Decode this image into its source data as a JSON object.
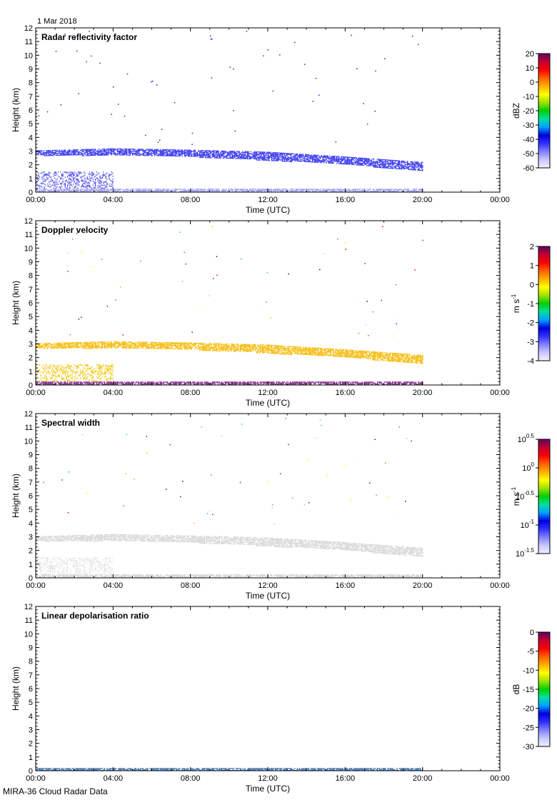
{
  "header": {
    "date": "1 Mar 2018"
  },
  "footer": {
    "caption": "MIRA-36 Cloud Radar Data"
  },
  "chart_data": [
    {
      "type": "heatmap",
      "title": "Radar reflectivity factor",
      "xlabel": "Time (UTC)",
      "ylabel": "Height (km)",
      "x_ticks": [
        "00:00",
        "04:00",
        "08:00",
        "12:00",
        "16:00",
        "20:00",
        "00:00"
      ],
      "y_ticks": [
        "0",
        "1",
        "2",
        "3",
        "4",
        "5",
        "6",
        "7",
        "8",
        "9",
        "10",
        "11",
        "12"
      ],
      "xlim_hours": [
        0,
        24
      ],
      "ylim_km": [
        0,
        12
      ],
      "data_end_hour": 20,
      "colorbar": {
        "label": "dBZ",
        "ticks": [
          "20",
          "10",
          "0",
          "-10",
          "-20",
          "-30",
          "-40",
          "-50",
          "-60"
        ],
        "min": -60,
        "max": 20
      },
      "layers": [
        {
          "name": "main cloud layer",
          "color": "#2d2df0",
          "base_km": [
            2.7,
            2.7,
            2.6,
            2.35,
            2.05,
            1.55
          ],
          "top_km": [
            3.05,
            3.2,
            3.1,
            2.95,
            2.6,
            2.2
          ]
        },
        {
          "name": "low layer",
          "color": "#4a4ae8",
          "hours": [
            0,
            4
          ],
          "base_km": 0.3,
          "top_km": 1.5
        },
        {
          "name": "surface clutter",
          "color": "#9a9af0",
          "base_km": 0.05,
          "top_km": 0.25
        }
      ]
    },
    {
      "type": "heatmap",
      "title": "Doppler velocity",
      "xlabel": "Time (UTC)",
      "ylabel": "Height (km)",
      "x_ticks": [
        "00:00",
        "04:00",
        "08:00",
        "12:00",
        "16:00",
        "20:00",
        "00:00"
      ],
      "y_ticks": [
        "0",
        "1",
        "2",
        "3",
        "4",
        "5",
        "6",
        "7",
        "8",
        "9",
        "10",
        "11",
        "12"
      ],
      "xlim_hours": [
        0,
        24
      ],
      "ylim_km": [
        0,
        12
      ],
      "data_end_hour": 20,
      "colorbar": {
        "label": "m s-1",
        "ticks": [
          "2",
          "1",
          "0",
          "-1",
          "-2",
          "-3",
          "-4"
        ],
        "min": -4,
        "max": 2
      },
      "layers": [
        {
          "name": "main cloud layer",
          "color": "#f5b800",
          "base_km": [
            2.7,
            2.7,
            2.6,
            2.35,
            2.05,
            1.55
          ],
          "top_km": [
            3.05,
            3.2,
            3.1,
            2.95,
            2.6,
            2.2
          ]
        },
        {
          "name": "low layer",
          "color": "#f0c400",
          "hours": [
            0,
            4
          ],
          "base_km": 0.3,
          "top_km": 1.5
        },
        {
          "name": "surface clutter",
          "color": "#7a2080",
          "base_km": 0.05,
          "top_km": 0.25
        }
      ]
    },
    {
      "type": "heatmap",
      "title": "Spectral width",
      "xlabel": "Time (UTC)",
      "ylabel": "Height (km)",
      "x_ticks": [
        "00:00",
        "04:00",
        "08:00",
        "12:00",
        "16:00",
        "20:00",
        "00:00"
      ],
      "y_ticks": [
        "0",
        "1",
        "2",
        "3",
        "4",
        "5",
        "6",
        "7",
        "8",
        "9",
        "10",
        "11",
        "12"
      ],
      "xlim_hours": [
        0,
        24
      ],
      "ylim_km": [
        0,
        12
      ],
      "data_end_hour": 20,
      "colorbar": {
        "label": "m s-1",
        "scale": "log",
        "ticks": [
          "10^0.5",
          "10^0",
          "10^-0.5",
          "10^-1",
          "10^-1.5"
        ],
        "min": -1.5,
        "max": 0.5
      },
      "layers": [
        {
          "name": "main cloud layer",
          "color": "#d6d6d6",
          "base_km": [
            2.7,
            2.7,
            2.6,
            2.35,
            2.05,
            1.55
          ],
          "top_km": [
            3.05,
            3.2,
            3.1,
            2.95,
            2.6,
            2.2
          ]
        },
        {
          "name": "low layer",
          "color": "#e0e0e0",
          "hours": [
            0,
            4
          ],
          "base_km": 0.3,
          "top_km": 1.5
        },
        {
          "name": "surface clutter",
          "color": "#d0d0d0",
          "base_km": 0.05,
          "top_km": 0.25
        }
      ]
    },
    {
      "type": "heatmap",
      "title": "Linear depolarisation ratio",
      "xlabel": "Time (UTC)",
      "ylabel": "Height (km)",
      "x_ticks": [
        "00:00",
        "04:00",
        "08:00",
        "12:00",
        "16:00",
        "20:00",
        "00:00"
      ],
      "y_ticks": [
        "0",
        "1",
        "2",
        "3",
        "4",
        "5",
        "6",
        "7",
        "8",
        "9",
        "10",
        "11",
        "12"
      ],
      "xlim_hours": [
        0,
        24
      ],
      "ylim_km": [
        0,
        12
      ],
      "data_end_hour": 20,
      "colorbar": {
        "label": "dB",
        "ticks": [
          "0",
          "-5",
          "-10",
          "-15",
          "-20",
          "-25",
          "-30"
        ],
        "min": -30,
        "max": 0
      },
      "layers": [
        {
          "name": "surface clutter",
          "color": "#3a70b0",
          "base_km": 0.05,
          "top_km": 0.2
        }
      ]
    }
  ],
  "colormap": [
    "#f0f0ff",
    "#c8c8ff",
    "#8080ff",
    "#3030ff",
    "#0000e0",
    "#00a0ff",
    "#00e0a0",
    "#00d000",
    "#a0e000",
    "#ffff00",
    "#ffb000",
    "#ff6000",
    "#ff0000",
    "#c00030",
    "#600060"
  ]
}
